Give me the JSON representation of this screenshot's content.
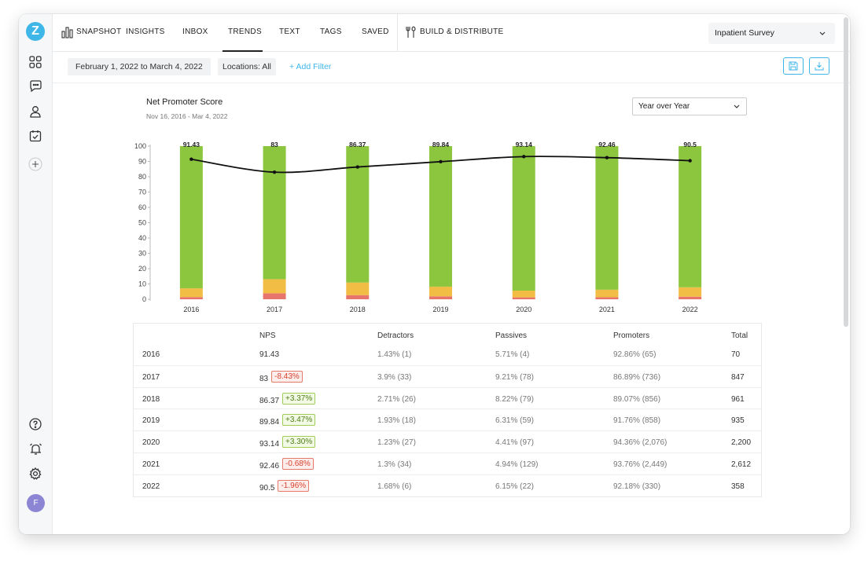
{
  "nav": {
    "logo": "Z",
    "tabs": [
      "SNAPSHOT",
      "INSIGHTS",
      "INBOX",
      "TRENDS",
      "TEXT",
      "TAGS",
      "SAVED"
    ],
    "build": "BUILD & DISTRIBUTE",
    "survey": "Inpatient Survey"
  },
  "filters": {
    "date": "February 1, 2022 to March 4, 2022",
    "locations": "Locations: All",
    "add": "+ Add Filter"
  },
  "user": {
    "initial": "F"
  },
  "chart": {
    "title": "Net Promoter Score",
    "subtitle": "Nov 16, 2016 - Mar 4, 2022",
    "view": "Year over Year"
  },
  "colors": {
    "promoters": "#8cc63f",
    "passives": "#f2bd45",
    "detractors": "#e8756b",
    "accent": "#3eb6e8"
  },
  "chart_data": {
    "type": "bar",
    "categories": [
      "2016",
      "2017",
      "2018",
      "2019",
      "2020",
      "2021",
      "2022"
    ],
    "ylim": [
      0,
      100
    ],
    "yticks": [
      0,
      10,
      20,
      30,
      40,
      50,
      60,
      70,
      80,
      90,
      100
    ],
    "series": [
      {
        "name": "Detractors",
        "values": [
          1.43,
          3.9,
          2.71,
          1.93,
          1.23,
          1.3,
          1.68
        ]
      },
      {
        "name": "Passives",
        "values": [
          5.71,
          9.21,
          8.22,
          6.31,
          4.41,
          4.94,
          6.15
        ]
      },
      {
        "name": "Promoters",
        "values": [
          92.86,
          86.89,
          89.07,
          91.76,
          94.36,
          93.76,
          92.18
        ]
      },
      {
        "name": "NPS",
        "values": [
          91.43,
          83,
          86.37,
          89.84,
          93.14,
          92.46,
          90.5
        ]
      }
    ]
  },
  "table": {
    "headers": [
      "NPS",
      "Detractors",
      "Passives",
      "Promoters",
      "Total"
    ],
    "rows": [
      {
        "year": "2016",
        "nps": "91.43",
        "change": "",
        "detractors": "1.43% (1)",
        "passives": "5.71% (4)",
        "promoters": "92.86% (65)",
        "total": "70"
      },
      {
        "year": "2017",
        "nps": "83",
        "change": "-8.43%",
        "detractors": "3.9% (33)",
        "passives": "9.21% (78)",
        "promoters": "86.89% (736)",
        "total": "847"
      },
      {
        "year": "2018",
        "nps": "86.37",
        "change": "+3.37%",
        "detractors": "2.71% (26)",
        "passives": "8.22% (79)",
        "promoters": "89.07% (856)",
        "total": "961"
      },
      {
        "year": "2019",
        "nps": "89.84",
        "change": "+3.47%",
        "detractors": "1.93% (18)",
        "passives": "6.31% (59)",
        "promoters": "91.76% (858)",
        "total": "935"
      },
      {
        "year": "2020",
        "nps": "93.14",
        "change": "+3.30%",
        "detractors": "1.23% (27)",
        "passives": "4.41% (97)",
        "promoters": "94.36% (2,076)",
        "total": "2,200"
      },
      {
        "year": "2021",
        "nps": "92.46",
        "change": "-0.68%",
        "detractors": "1.3% (34)",
        "passives": "4.94% (129)",
        "promoters": "93.76% (2,449)",
        "total": "2,612"
      },
      {
        "year": "2022",
        "nps": "90.5",
        "change": "-1.96%",
        "detractors": "1.68% (6)",
        "passives": "6.15% (22)",
        "promoters": "92.18% (330)",
        "total": "358"
      }
    ]
  }
}
